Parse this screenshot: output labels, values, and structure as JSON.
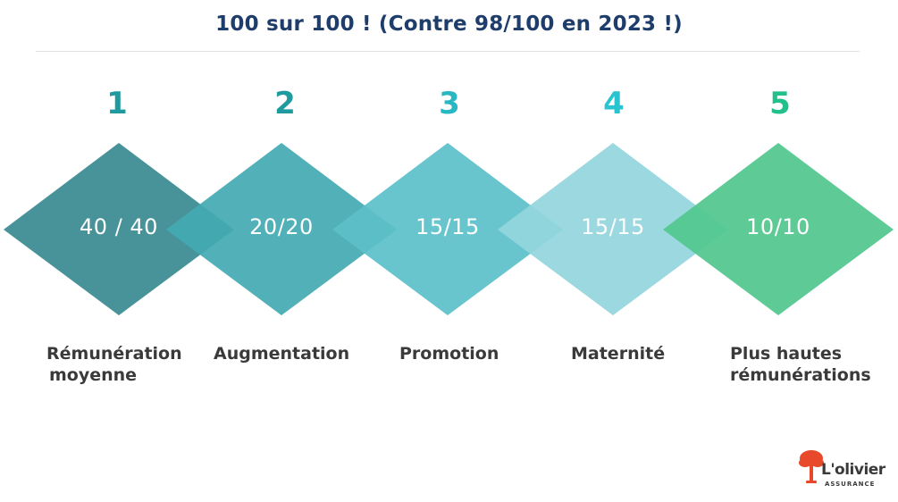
{
  "title": "100 sur 100 ! (Contre 98/100 en 2023 !)",
  "steps": [
    {
      "number": "1",
      "score": "40 / 40",
      "label_lines": [
        "Rémunération",
        "moyenne"
      ],
      "color": "#3a8b91",
      "number_color": "#1f9a9e"
    },
    {
      "number": "2",
      "score": "20/20",
      "label_lines": [
        "Augmentation"
      ],
      "color": "#44aab3",
      "number_color": "#1f9a9e"
    },
    {
      "number": "3",
      "score": "15/15",
      "label_lines": [
        "Promotion"
      ],
      "color": "#5cbfc9",
      "number_color": "#29b7c4"
    },
    {
      "number": "4",
      "score": "15/15",
      "label_lines": [
        "Maternité"
      ],
      "color": "#93d5dd",
      "number_color": "#2ac3d0"
    },
    {
      "number": "5",
      "score": "10/10",
      "label_lines": [
        "Plus hautes",
        "rémunérations"
      ],
      "color": "#52c78e",
      "number_color": "#22c08a"
    }
  ],
  "logo": {
    "name": "L'olivier",
    "subtitle": "ASSURANCE",
    "icon": "olive-tree-icon",
    "icon_color": "#e8492a"
  }
}
